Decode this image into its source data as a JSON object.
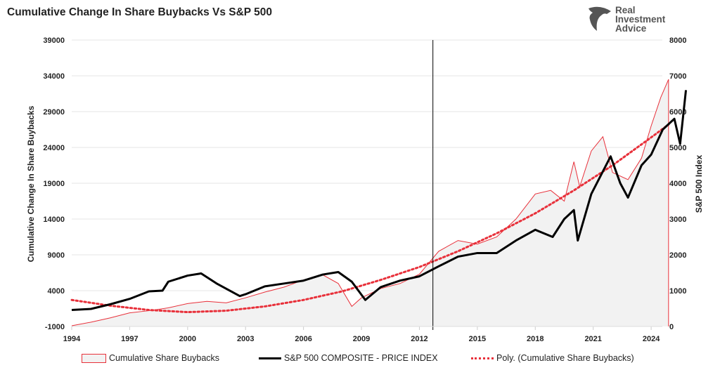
{
  "header": {
    "title": "Cumulative Change In Share Buybacks Vs S&P 500"
  },
  "logo": {
    "text": [
      "Real",
      "Investment",
      "Advice"
    ]
  },
  "chart_data": {
    "type": "line",
    "title": "Cumulative Change In Share Buybacks Vs S&P 500",
    "ylabel": "Cumulative Change In Share Buybacks",
    "y2label": "S&P 500 Index",
    "ylim": [
      -1000,
      39000
    ],
    "y2lim": [
      0,
      8000
    ],
    "xlim": [
      1994,
      2025
    ],
    "x_ticks": [
      "1994",
      "1997",
      "2000",
      "2003",
      "2006",
      "2009",
      "2012",
      "2015",
      "2018",
      "2021",
      "2024"
    ],
    "y_ticks": [
      "-1000",
      "4000",
      "9000",
      "14000",
      "19000",
      "24000",
      "29000",
      "34000",
      "39000"
    ],
    "y2_ticks": [
      "0",
      "1000",
      "2000",
      "3000",
      "4000",
      "5000",
      "6000",
      "7000",
      "8000"
    ],
    "vertical_marker_x": 2012.7,
    "grid": true,
    "legend_position": "bottom",
    "colors": {
      "buybacks": "#e8303a",
      "sp500": "#000000",
      "poly": "#e8303a",
      "area": "#f2f2f2"
    },
    "series": [
      {
        "name": "Cumulative Share Buybacks",
        "axis": "left",
        "style": "area",
        "x": [
          1994,
          1995,
          1996,
          1997,
          1998,
          1999,
          2000,
          2001,
          2002,
          2003,
          2004,
          2005,
          2006,
          2007,
          2007.8,
          2008.5,
          2009,
          2010,
          2011,
          2012,
          2013,
          2014,
          2015,
          2016,
          2017,
          2018,
          2018.8,
          2019.5,
          2020,
          2020.3,
          2020.9,
          2021.5,
          2022,
          2022.8,
          2023.5,
          2024,
          2024.5,
          2024.9
        ],
        "values": [
          -900,
          -400,
          200,
          900,
          1200,
          1600,
          2200,
          2500,
          2300,
          3000,
          3800,
          4500,
          5500,
          6200,
          5000,
          1800,
          3000,
          4300,
          5000,
          6300,
          9500,
          11000,
          10500,
          11500,
          14000,
          17500,
          18000,
          16500,
          22000,
          18500,
          23500,
          25500,
          20500,
          19500,
          22500,
          27000,
          31000,
          33500
        ]
      },
      {
        "name": "S&P 500 COMPOSITE - PRICE INDEX",
        "axis": "right",
        "style": "line",
        "x": [
          1994,
          1995,
          1996,
          1997,
          1998,
          1998.7,
          1999,
          2000,
          2000.7,
          2001.5,
          2002.7,
          2003,
          2004,
          2005,
          2006,
          2007,
          2007.8,
          2008.5,
          2009.2,
          2010,
          2011,
          2012,
          2013,
          2014,
          2015,
          2016,
          2017,
          2018,
          2018.9,
          2019.5,
          2020,
          2020.2,
          2020.9,
          2021.9,
          2022.4,
          2022.8,
          2023.5,
          2024,
          2024.6,
          2025.2,
          2025.5,
          2025.8
        ],
        "values": [
          460,
          490,
          620,
          770,
          980,
          1000,
          1250,
          1420,
          1480,
          1200,
          850,
          900,
          1120,
          1200,
          1280,
          1450,
          1520,
          1250,
          740,
          1100,
          1280,
          1400,
          1680,
          1950,
          2050,
          2050,
          2400,
          2700,
          2500,
          3000,
          3250,
          2400,
          3700,
          4750,
          4000,
          3600,
          4500,
          4800,
          5500,
          5800,
          5100,
          6600
        ]
      },
      {
        "name": "Poly. (Cumulative Share Buybacks)",
        "axis": "left",
        "style": "dotted",
        "x": [
          1994,
          1996,
          1998,
          2000,
          2002,
          2004,
          2006,
          2008,
          2010,
          2012,
          2014,
          2016,
          2018,
          2020,
          2022,
          2024,
          2024.9
        ],
        "values": [
          2700,
          1900,
          1300,
          1000,
          1200,
          1800,
          2700,
          3900,
          5500,
          7300,
          9500,
          12000,
          14800,
          18000,
          21500,
          25400,
          27200
        ]
      }
    ]
  }
}
